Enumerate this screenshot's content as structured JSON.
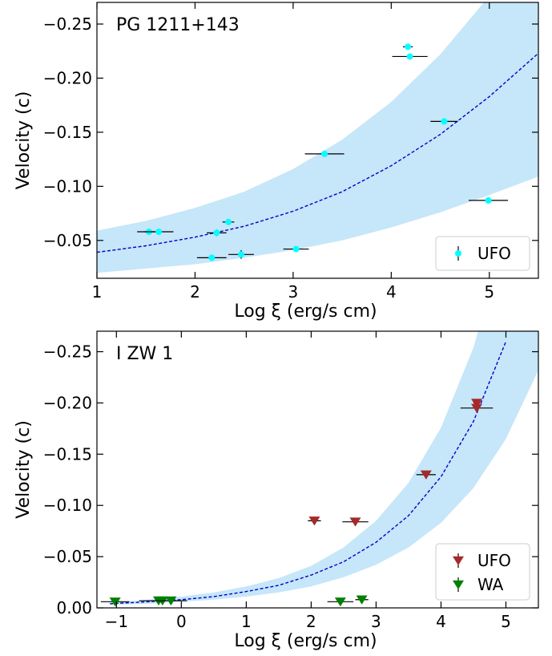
{
  "chart_data": [
    {
      "type": "scatter",
      "title": "PG 1211+143",
      "xlabel": "Log ξ (erg/s cm)",
      "ylabel": "Velocity (c)",
      "xlim": [
        1,
        5.5
      ],
      "ylim": [
        -0.015,
        -0.27
      ],
      "xticks": [
        1,
        2,
        3,
        4,
        5
      ],
      "xtick_labels": [
        "1",
        "2",
        "3",
        "4",
        "5"
      ],
      "yticks": [
        -0.05,
        -0.1,
        -0.15,
        -0.2,
        -0.25
      ],
      "ytick_labels": [
        "−0.05",
        "−0.10",
        "−0.15",
        "−0.20",
        "−0.25"
      ],
      "legend_position": "lower-right",
      "band_color": "#c6e6f9",
      "fit_color": "#0000cc",
      "fit_curve": {
        "x": [
          1.0,
          1.5,
          2.0,
          2.5,
          3.0,
          3.5,
          4.0,
          4.5,
          5.0,
          5.5
        ],
        "y": [
          -0.039,
          -0.045,
          -0.053,
          -0.063,
          -0.077,
          -0.095,
          -0.119,
          -0.148,
          -0.183,
          -0.223
        ]
      },
      "band": {
        "x": [
          1.0,
          1.5,
          2.0,
          2.5,
          3.0,
          3.5,
          4.0,
          4.5,
          5.0,
          5.5
        ],
        "y_low": [
          -0.02,
          -0.024,
          -0.028,
          -0.034,
          -0.041,
          -0.05,
          -0.062,
          -0.076,
          -0.092,
          -0.109
        ],
        "y_high": [
          -0.059,
          -0.068,
          -0.08,
          -0.095,
          -0.116,
          -0.143,
          -0.178,
          -0.222,
          -0.276,
          -0.34
        ]
      },
      "series": [
        {
          "name": "UFO",
          "marker": "circle",
          "color": "#00ffff",
          "points": [
            {
              "x": 1.53,
              "y": -0.058,
              "xerr": 0.12,
              "yerr": 0.002
            },
            {
              "x": 1.63,
              "y": -0.058,
              "xerr": 0.15,
              "yerr": 0.002
            },
            {
              "x": 2.17,
              "y": -0.034,
              "xerr": 0.15,
              "yerr": 0.002
            },
            {
              "x": 2.22,
              "y": -0.057,
              "xerr": 0.1,
              "yerr": 0.003
            },
            {
              "x": 2.34,
              "y": -0.067,
              "xerr": 0.06,
              "yerr": 0.002
            },
            {
              "x": 2.47,
              "y": -0.037,
              "xerr": 0.13,
              "yerr": 0.004
            },
            {
              "x": 3.03,
              "y": -0.042,
              "xerr": 0.13,
              "yerr": 0.002
            },
            {
              "x": 3.32,
              "y": -0.13,
              "xerr": 0.2,
              "yerr": 0.002
            },
            {
              "x": 4.17,
              "y": -0.229,
              "xerr": 0.05,
              "yerr": 0.002
            },
            {
              "x": 4.19,
              "y": -0.22,
              "xerr": 0.18,
              "yerr": 0.002
            },
            {
              "x": 4.54,
              "y": -0.16,
              "xerr": 0.14,
              "yerr": 0.002
            },
            {
              "x": 4.99,
              "y": -0.087,
              "xerr": 0.2,
              "yerr": 0.002
            }
          ]
        }
      ]
    },
    {
      "type": "scatter",
      "title": "I ZW 1",
      "xlabel": "Log ξ (erg/s cm)",
      "ylabel": "Velocity (c)",
      "xlim": [
        -1.3,
        5.5
      ],
      "ylim": [
        0.0,
        -0.27
      ],
      "xticks": [
        -1,
        0,
        1,
        2,
        3,
        4,
        5
      ],
      "xtick_labels": [
        "−1",
        "0",
        "1",
        "2",
        "3",
        "4",
        "5"
      ],
      "yticks": [
        0.0,
        -0.05,
        -0.1,
        -0.15,
        -0.2,
        -0.25
      ],
      "ytick_labels": [
        "0.00",
        "−0.05",
        "−0.10",
        "−0.15",
        "−0.20",
        "−0.25"
      ],
      "legend_position": "lower-right",
      "band_color": "#c6e6f9",
      "fit_color": "#0000cc",
      "fit_curve": {
        "x": [
          -1.1,
          -0.5,
          0.0,
          0.5,
          1.0,
          1.5,
          2.0,
          2.5,
          3.0,
          3.5,
          4.0,
          4.5,
          5.0
        ],
        "y": [
          -0.004,
          -0.006,
          -0.008,
          -0.011,
          -0.016,
          -0.022,
          -0.032,
          -0.045,
          -0.064,
          -0.09,
          -0.128,
          -0.182,
          -0.26
        ]
      },
      "band": {
        "x": [
          -1.1,
          -0.5,
          0.0,
          0.5,
          1.0,
          1.5,
          2.0,
          2.5,
          3.0,
          3.5,
          4.0,
          4.5,
          5.0,
          5.5
        ],
        "y_low": [
          -0.003,
          -0.004,
          -0.006,
          -0.008,
          -0.011,
          -0.015,
          -0.021,
          -0.03,
          -0.042,
          -0.059,
          -0.083,
          -0.117,
          -0.165,
          -0.232
        ],
        "y_high": [
          -0.005,
          -0.008,
          -0.011,
          -0.015,
          -0.021,
          -0.029,
          -0.041,
          -0.059,
          -0.085,
          -0.122,
          -0.176,
          -0.254,
          -0.365,
          -0.52
        ]
      },
      "series": [
        {
          "name": "UFO",
          "marker": "triangle-down",
          "color": "#a52a2a",
          "points": [
            {
              "x": 2.05,
              "y": -0.085,
              "xerr": 0.1,
              "yerr": 0.002
            },
            {
              "x": 2.68,
              "y": -0.084,
              "xerr": 0.2,
              "yerr": 0.002
            },
            {
              "x": 3.77,
              "y": -0.13,
              "xerr": 0.15,
              "yerr": 0.002
            },
            {
              "x": 4.55,
              "y": -0.2,
              "xerr": 0.05,
              "yerr": 0.002
            },
            {
              "x": 4.55,
              "y": -0.195,
              "xerr": 0.25,
              "yerr": 0.002
            }
          ]
        },
        {
          "name": "WA",
          "marker": "triangle-down",
          "color": "#008000",
          "points": [
            {
              "x": -1.02,
              "y": -0.006,
              "xerr": 0.22,
              "yerr": 0.002
            },
            {
              "x": -0.35,
              "y": -0.007,
              "xerr": 0.3,
              "yerr": 0.002
            },
            {
              "x": -0.29,
              "y": -0.007,
              "xerr": 0.05,
              "yerr": 0.002
            },
            {
              "x": -0.16,
              "y": -0.007,
              "xerr": 0.25,
              "yerr": 0.002
            },
            {
              "x": 2.45,
              "y": -0.006,
              "xerr": 0.2,
              "yerr": 0.002
            },
            {
              "x": 2.78,
              "y": -0.008,
              "xerr": 0.1,
              "yerr": 0.002
            }
          ]
        }
      ]
    }
  ]
}
